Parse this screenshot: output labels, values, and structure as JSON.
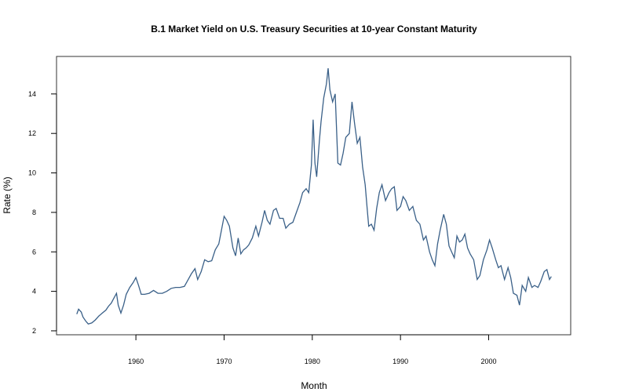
{
  "chart_data": {
    "type": "line",
    "title": "B.1  Market Yield on U.S. Treasury Securities at 10-year Constant Maturity",
    "xlabel": "Month",
    "ylabel": "Rate (%)",
    "xlim": [
      1951.0,
      2009.3
    ],
    "ylim": [
      1.8,
      15.9
    ],
    "x_ticks": [
      1960,
      1970,
      1980,
      1990,
      2000
    ],
    "y_ticks": [
      2,
      4,
      6,
      8,
      10,
      12,
      14
    ],
    "grid": false,
    "legend": "none",
    "series": [
      {
        "color": "#3a6088",
        "points": [
          [
            1953.3,
            2.85
          ],
          [
            1953.5,
            3.1
          ],
          [
            1953.8,
            2.95
          ],
          [
            1954.0,
            2.7
          ],
          [
            1954.3,
            2.5
          ],
          [
            1954.6,
            2.35
          ],
          [
            1955.0,
            2.4
          ],
          [
            1955.4,
            2.55
          ],
          [
            1955.8,
            2.75
          ],
          [
            1956.2,
            2.9
          ],
          [
            1956.6,
            3.05
          ],
          [
            1956.9,
            3.25
          ],
          [
            1957.2,
            3.4
          ],
          [
            1957.5,
            3.65
          ],
          [
            1957.8,
            3.9
          ],
          [
            1958.0,
            3.3
          ],
          [
            1958.3,
            2.9
          ],
          [
            1958.6,
            3.3
          ],
          [
            1958.9,
            3.85
          ],
          [
            1959.3,
            4.2
          ],
          [
            1959.7,
            4.45
          ],
          [
            1960.0,
            4.7
          ],
          [
            1960.3,
            4.3
          ],
          [
            1960.6,
            3.85
          ],
          [
            1961.0,
            3.85
          ],
          [
            1961.5,
            3.9
          ],
          [
            1962.0,
            4.05
          ],
          [
            1962.5,
            3.9
          ],
          [
            1963.0,
            3.9
          ],
          [
            1963.5,
            4.0
          ],
          [
            1964.0,
            4.15
          ],
          [
            1964.5,
            4.2
          ],
          [
            1965.0,
            4.2
          ],
          [
            1965.5,
            4.25
          ],
          [
            1966.0,
            4.65
          ],
          [
            1966.3,
            4.9
          ],
          [
            1966.7,
            5.15
          ],
          [
            1967.0,
            4.6
          ],
          [
            1967.4,
            5.0
          ],
          [
            1967.8,
            5.6
          ],
          [
            1968.2,
            5.5
          ],
          [
            1968.6,
            5.55
          ],
          [
            1969.0,
            6.1
          ],
          [
            1969.4,
            6.4
          ],
          [
            1969.7,
            7.1
          ],
          [
            1970.0,
            7.8
          ],
          [
            1970.3,
            7.6
          ],
          [
            1970.6,
            7.3
          ],
          [
            1971.0,
            6.2
          ],
          [
            1971.3,
            5.8
          ],
          [
            1971.6,
            6.7
          ],
          [
            1971.9,
            5.9
          ],
          [
            1972.2,
            6.1
          ],
          [
            1972.5,
            6.2
          ],
          [
            1972.8,
            6.35
          ],
          [
            1973.2,
            6.7
          ],
          [
            1973.6,
            7.3
          ],
          [
            1973.9,
            6.8
          ],
          [
            1974.3,
            7.5
          ],
          [
            1974.6,
            8.1
          ],
          [
            1974.9,
            7.6
          ],
          [
            1975.2,
            7.4
          ],
          [
            1975.6,
            8.1
          ],
          [
            1975.9,
            8.2
          ],
          [
            1976.3,
            7.7
          ],
          [
            1976.7,
            7.7
          ],
          [
            1977.0,
            7.2
          ],
          [
            1977.4,
            7.4
          ],
          [
            1977.8,
            7.5
          ],
          [
            1978.2,
            8.0
          ],
          [
            1978.6,
            8.5
          ],
          [
            1978.9,
            9.0
          ],
          [
            1979.3,
            9.2
          ],
          [
            1979.6,
            9.0
          ],
          [
            1979.9,
            10.4
          ],
          [
            1980.1,
            12.7
          ],
          [
            1980.3,
            10.5
          ],
          [
            1980.5,
            9.8
          ],
          [
            1980.8,
            11.6
          ],
          [
            1981.0,
            12.6
          ],
          [
            1981.3,
            13.8
          ],
          [
            1981.6,
            14.5
          ],
          [
            1981.8,
            15.3
          ],
          [
            1982.0,
            14.2
          ],
          [
            1982.3,
            13.6
          ],
          [
            1982.6,
            14.0
          ],
          [
            1982.9,
            10.5
          ],
          [
            1983.2,
            10.4
          ],
          [
            1983.5,
            11.0
          ],
          [
            1983.8,
            11.8
          ],
          [
            1984.2,
            12.0
          ],
          [
            1984.5,
            13.6
          ],
          [
            1984.8,
            12.5
          ],
          [
            1985.1,
            11.5
          ],
          [
            1985.4,
            11.8
          ],
          [
            1985.7,
            10.3
          ],
          [
            1986.0,
            9.4
          ],
          [
            1986.2,
            8.3
          ],
          [
            1986.4,
            7.3
          ],
          [
            1986.7,
            7.4
          ],
          [
            1987.0,
            7.1
          ],
          [
            1987.3,
            8.2
          ],
          [
            1987.6,
            9.0
          ],
          [
            1987.9,
            9.4
          ],
          [
            1988.3,
            8.6
          ],
          [
            1988.7,
            9.0
          ],
          [
            1989.0,
            9.2
          ],
          [
            1989.3,
            9.3
          ],
          [
            1989.6,
            8.1
          ],
          [
            1990.0,
            8.3
          ],
          [
            1990.3,
            8.8
          ],
          [
            1990.6,
            8.6
          ],
          [
            1991.0,
            8.1
          ],
          [
            1991.4,
            8.3
          ],
          [
            1991.8,
            7.6
          ],
          [
            1992.2,
            7.4
          ],
          [
            1992.6,
            6.6
          ],
          [
            1992.9,
            6.8
          ],
          [
            1993.3,
            6.0
          ],
          [
            1993.6,
            5.6
          ],
          [
            1993.9,
            5.3
          ],
          [
            1994.2,
            6.4
          ],
          [
            1994.5,
            7.1
          ],
          [
            1994.9,
            7.9
          ],
          [
            1995.2,
            7.4
          ],
          [
            1995.5,
            6.3
          ],
          [
            1995.8,
            6.0
          ],
          [
            1996.1,
            5.7
          ],
          [
            1996.4,
            6.8
          ],
          [
            1996.7,
            6.5
          ],
          [
            1997.0,
            6.6
          ],
          [
            1997.3,
            6.9
          ],
          [
            1997.6,
            6.2
          ],
          [
            1997.9,
            5.9
          ],
          [
            1998.3,
            5.6
          ],
          [
            1998.7,
            4.6
          ],
          [
            1999.0,
            4.8
          ],
          [
            1999.4,
            5.6
          ],
          [
            1999.8,
            6.1
          ],
          [
            2000.1,
            6.6
          ],
          [
            2000.4,
            6.2
          ],
          [
            2000.8,
            5.6
          ],
          [
            2001.1,
            5.2
          ],
          [
            2001.4,
            5.3
          ],
          [
            2001.8,
            4.6
          ],
          [
            2002.2,
            5.2
          ],
          [
            2002.5,
            4.7
          ],
          [
            2002.8,
            3.9
          ],
          [
            2003.2,
            3.8
          ],
          [
            2003.5,
            3.3
          ],
          [
            2003.8,
            4.3
          ],
          [
            2004.2,
            4.0
          ],
          [
            2004.5,
            4.7
          ],
          [
            2004.9,
            4.2
          ],
          [
            2005.2,
            4.3
          ],
          [
            2005.6,
            4.2
          ],
          [
            2005.9,
            4.5
          ],
          [
            2006.3,
            5.0
          ],
          [
            2006.6,
            5.1
          ],
          [
            2006.9,
            4.6
          ],
          [
            2007.1,
            4.75
          ]
        ]
      }
    ]
  }
}
